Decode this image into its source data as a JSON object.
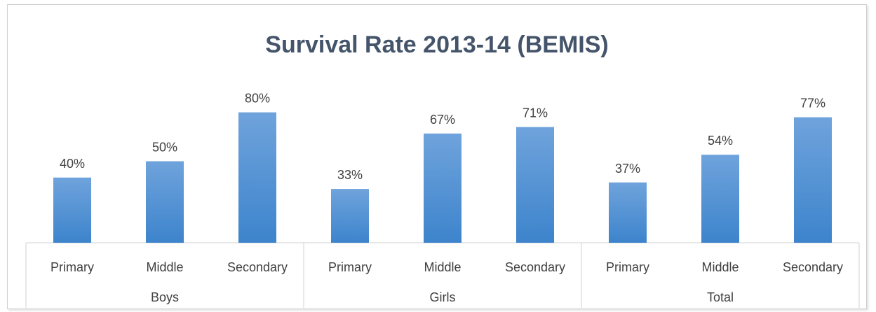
{
  "chart_data": {
    "type": "bar",
    "title": "Survival Rate 2013-14 (BEMIS)",
    "groups": [
      "Boys",
      "Girls",
      "Total"
    ],
    "categories": [
      "Primary",
      "Middle",
      "Secondary"
    ],
    "values": [
      [
        40,
        50,
        80
      ],
      [
        33,
        67,
        71
      ],
      [
        37,
        54,
        77
      ]
    ],
    "data_labels": [
      [
        "40%",
        "50%",
        "80%"
      ],
      [
        "33%",
        "67%",
        "71%"
      ],
      [
        "37%",
        "54%",
        "77%"
      ]
    ],
    "ylim": [
      0,
      100
    ],
    "grid": false,
    "legend": "none",
    "colors": {
      "bar_top": "#6fa3dc",
      "bar_bottom": "#3d84cc",
      "axis": "#d0d0d0",
      "text": "#404040",
      "title": "#44546a"
    }
  }
}
